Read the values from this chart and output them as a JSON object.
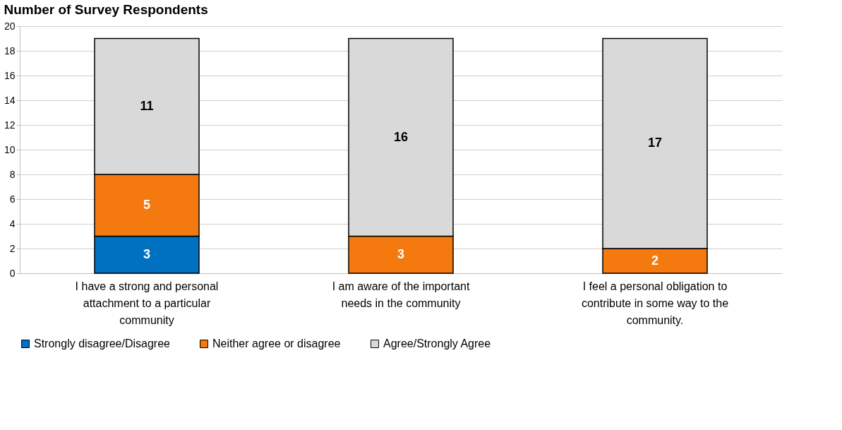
{
  "chart_data": {
    "type": "bar",
    "title": "Number of Survey Respondents",
    "stacked": true,
    "categories": [
      "I have a strong and personal attachment to a particular community",
      "I am aware of the important needs in the community",
      "I feel a personal obligation to contribute in some way to the community."
    ],
    "series": [
      {
        "name": "Strongly disagree/Disagree",
        "color": "#0070c0",
        "values": [
          3,
          null,
          null
        ]
      },
      {
        "name": "Neither agree or disagree",
        "color": "#f47a0f",
        "values": [
          5,
          3,
          2
        ]
      },
      {
        "name": "Agree/Strongly Agree",
        "color": "#d9d9d9",
        "values": [
          11,
          16,
          17
        ]
      }
    ],
    "ylim": [
      0,
      20
    ],
    "yticks": [
      0,
      2,
      4,
      6,
      8,
      10,
      12,
      14,
      16,
      18,
      20
    ],
    "grid": "y",
    "legend": "bottom",
    "data_labels": true
  }
}
